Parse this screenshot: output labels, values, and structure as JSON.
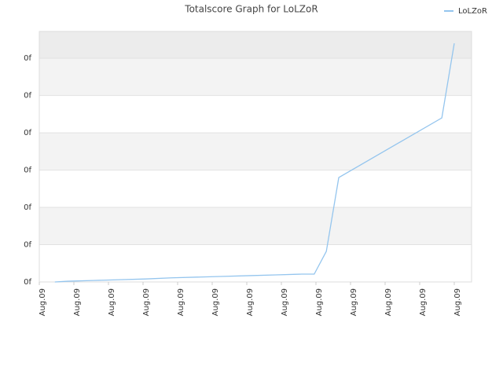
{
  "chart_data": {
    "type": "line",
    "title": "Totalscore Graph for LoLZoR",
    "series": [
      {
        "name": "LoLZoR",
        "color": "#94c5ee",
        "x": [
          0.45,
          0.82,
          1.55,
          2.32,
          3.07,
          3.82,
          4.57,
          5.34,
          6.09,
          6.84,
          7.59,
          7.95,
          8.3,
          8.66,
          11.64,
          12.0
        ],
        "values": [
          0,
          0.02,
          0.04,
          0.06,
          0.08,
          0.11,
          0.13,
          0.15,
          0.17,
          0.19,
          0.21,
          0.21,
          0.82,
          2.8,
          4.4,
          6.4
        ]
      }
    ],
    "xlim": [
      0,
      12.5
    ],
    "xticks": [
      {
        "value": 0,
        "label": "Aug.09"
      },
      {
        "value": 1,
        "label": "Aug.09"
      },
      {
        "value": 2,
        "label": "Aug.09"
      },
      {
        "value": 3,
        "label": "Aug.09"
      },
      {
        "value": 4,
        "label": "Aug.09"
      },
      {
        "value": 5,
        "label": "Aug.09"
      },
      {
        "value": 6,
        "label": "Aug.09"
      },
      {
        "value": 7,
        "label": "Aug.09"
      },
      {
        "value": 8,
        "label": "Aug.09"
      },
      {
        "value": 9,
        "label": "Aug.09"
      },
      {
        "value": 10,
        "label": "Aug.09"
      },
      {
        "value": 11,
        "label": "Aug.09"
      },
      {
        "value": 12,
        "label": "Aug.09"
      }
    ],
    "ylim": [
      0,
      6.72
    ],
    "yticks": [
      {
        "value": 0,
        "label": "0f"
      },
      {
        "value": 1,
        "label": "0f"
      },
      {
        "value": 2,
        "label": "0f"
      },
      {
        "value": 3,
        "label": "0f"
      },
      {
        "value": 4,
        "label": "0f"
      },
      {
        "value": 5,
        "label": "0f"
      },
      {
        "value": 6,
        "label": "0f"
      }
    ],
    "grid": true,
    "legend": "top-right"
  }
}
